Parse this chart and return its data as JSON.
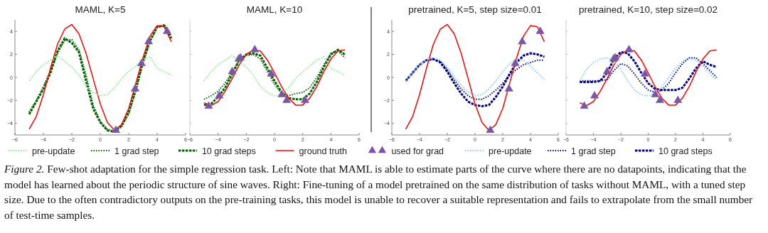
{
  "chart_data": [
    {
      "type": "line",
      "title": "MAML, K=5",
      "x": [
        -5,
        -4.5,
        -4,
        -3.5,
        -3,
        -2.5,
        -2,
        -1.5,
        -1,
        -0.5,
        0,
        0.5,
        1,
        1.5,
        2,
        2.5,
        3,
        3.5,
        4,
        4.5,
        5
      ],
      "xlim": [
        -6,
        6
      ],
      "ylim": [
        -5,
        5
      ],
      "xticks": [
        -6,
        -4,
        -2,
        0,
        2,
        4,
        6
      ],
      "yticks": [
        -4,
        -2,
        0,
        2,
        4
      ],
      "legend": "bottom",
      "series": [
        {
          "name": "pre-update",
          "color": "#90ee90",
          "line_style": "dotted",
          "values": [
            -0.3,
            0.5,
            1.1,
            1.5,
            1.9,
            1.4,
            0.9,
            0.2,
            -0.8,
            -1.3,
            -1.6,
            -1.5,
            -0.9,
            -0.1,
            0.5,
            1.0,
            1.5,
            1.8,
            0.8,
            0.5,
            0.2
          ]
        },
        {
          "name": "1 grad step",
          "color": "#006400",
          "line_style": "dotted",
          "values": [
            -3.0,
            -2.0,
            -0.8,
            0.6,
            2.1,
            3.2,
            3.3,
            2.4,
            0.2,
            -2.4,
            -3.8,
            -4.5,
            -4.7,
            -4.3,
            -3.2,
            -1.2,
            1.2,
            3.1,
            4.3,
            4.6,
            3.6
          ]
        },
        {
          "name": "10 grad steps",
          "color": "#006400",
          "line_style": "dashed",
          "values": [
            -3.2,
            -2.1,
            -1.0,
            0.4,
            2.3,
            3.4,
            3.0,
            2.2,
            -0.3,
            -2.7,
            -3.9,
            -4.6,
            -4.7,
            -4.2,
            -3.0,
            -1.0,
            1.4,
            3.2,
            4.4,
            4.5,
            3.4
          ]
        },
        {
          "name": "ground truth",
          "color": "#ff0000",
          "line_style": "solid",
          "values": [
            -4.5,
            -3.4,
            -1.5,
            0.8,
            2.9,
            4.2,
            4.6,
            3.8,
            2.1,
            -0.1,
            -2.3,
            -3.9,
            -4.6,
            -4.1,
            -2.7,
            -0.5,
            1.7,
            3.6,
            4.5,
            4.4,
            3.1
          ]
        },
        {
          "name": "used for grad",
          "type": "scatter",
          "marker": "triangle",
          "color": "#7e4fb5",
          "x": [
            1.1,
            2.45,
            2.9,
            3.4,
            4.7
          ],
          "values": [
            -4.6,
            -1.0,
            1.2,
            3.1,
            4.0
          ]
        }
      ],
      "annotations": [
        "Figure 2.",
        "Few-shot adaptation for the simple regression task. Left: Note that MAML is able to estimate parts of the curve where there are no datapoints, indicating that the model has learned about the periodic structure of sine waves. Right: Fine-tuning of a model pretrained on the same distribution of tasks without MAML, with a tuned step size. Due to the often contradictory outputs on the pre-training tasks, this model is unable to recover a suitable representation and fails to extrapolate from the small number of test-time samples."
      ]
    },
    {
      "type": "line",
      "title": "MAML, K=10",
      "x": [
        -5,
        -4.5,
        -4,
        -3.5,
        -3,
        -2.5,
        -2,
        -1.5,
        -1,
        -0.5,
        0,
        0.5,
        1,
        1.5,
        2,
        2.5,
        3,
        3.5,
        4,
        4.5,
        5
      ],
      "xlim": [
        -6,
        6
      ],
      "ylim": [
        -5,
        5
      ],
      "xticks": [
        -6,
        -4,
        -2,
        0,
        2,
        4,
        6
      ],
      "yticks": [
        -4,
        -2,
        0,
        2,
        4
      ],
      "tick_labels": "x",
      "legend": "bottom",
      "series": [
        {
          "color": "#90ee90",
          "line_style": "dotted",
          "values": [
            -0.3,
            0.5,
            1.1,
            1.5,
            1.9,
            1.4,
            0.9,
            0.2,
            -0.8,
            -1.3,
            -1.6,
            -1.5,
            -0.9,
            -0.1,
            0.5,
            1.0,
            1.5,
            1.8,
            0.8,
            0.5,
            0.2
          ]
        },
        {
          "color": "#006400",
          "line_style": "dotted",
          "values": [
            -1.9,
            -1.6,
            -1.2,
            -0.5,
            0.5,
            1.5,
            1.9,
            2.0,
            1.6,
            0.5,
            -0.6,
            -1.4,
            -1.6,
            -1.4,
            -1.3,
            -0.9,
            0.0,
            1.1,
            2.1,
            2.3,
            1.7
          ]
        },
        {
          "color": "#006400",
          "line_style": "dashed",
          "values": [
            -2.4,
            -2.3,
            -1.7,
            -0.9,
            0.3,
            1.5,
            2.0,
            2.1,
            1.9,
            0.8,
            -0.3,
            -1.3,
            -1.8,
            -1.9,
            -1.9,
            -1.4,
            -0.4,
            0.9,
            2.0,
            2.4,
            2.0
          ]
        },
        {
          "color": "#ff0000",
          "line_style": "solid",
          "values": [
            -2.2,
            -2.45,
            -2.1,
            -1.2,
            -0.1,
            1.1,
            2.0,
            2.4,
            2.3,
            1.5,
            0.4,
            -0.8,
            -1.8,
            -2.4,
            -2.4,
            -1.8,
            -0.8,
            0.5,
            1.6,
            2.3,
            2.4
          ]
        },
        {
          "type": "scatter",
          "marker": "triangle",
          "color": "#7e4fb5",
          "x": [
            -4.67,
            -3.92,
            -3.0,
            -2.53,
            -2.41,
            -1.4,
            -0.23,
            0.52,
            0.86,
            2.17
          ],
          "values": [
            -2.5,
            -1.6,
            0.5,
            1.6,
            1.7,
            2.4,
            0.3,
            -1.5,
            -2.0,
            -2.0
          ]
        }
      ]
    },
    {
      "type": "line",
      "title": "pretrained, K=5, step size=0.01",
      "x": [
        -5,
        -4.5,
        -4,
        -3.5,
        -3,
        -2.5,
        -2,
        -1.5,
        -1,
        -0.5,
        0,
        0.5,
        1,
        1.5,
        2,
        2.5,
        3,
        3.5,
        4,
        4.5,
        5
      ],
      "xlim": [
        -6,
        6
      ],
      "ylim": [
        -5,
        5
      ],
      "xticks": [
        -6,
        -4,
        -2,
        0,
        2,
        4,
        6
      ],
      "yticks": [
        -4,
        -2,
        0,
        2,
        4
      ],
      "legend": "bottom",
      "series": [
        {
          "name": "pre-update",
          "color": "#87cefa",
          "line_style": "dotted",
          "values": [
            -0.3,
            0.4,
            1.1,
            1.5,
            1.7,
            1.5,
            0.9,
            0.1,
            -0.7,
            -1.3,
            -1.6,
            -1.5,
            -1.0,
            -0.3,
            0.5,
            1.2,
            1.6,
            1.5,
            1.0,
            0.4,
            -0.2
          ]
        },
        {
          "name": "1 grad step",
          "color": "#00008b",
          "line_style": "dotted",
          "values": [
            -0.3,
            0.4,
            1.1,
            1.5,
            1.6,
            1.4,
            0.7,
            -0.2,
            -1.0,
            -1.6,
            -1.9,
            -1.9,
            -1.6,
            -1.1,
            -0.5,
            0.2,
            0.7,
            1.1,
            1.3,
            1.5,
            1.5
          ]
        },
        {
          "name": "10 grad steps",
          "color": "#00008b",
          "line_style": "dashed",
          "values": [
            -0.3,
            0.4,
            1.1,
            1.5,
            1.6,
            1.3,
            0.5,
            -0.5,
            -1.4,
            -2.1,
            -2.4,
            -2.5,
            -2.4,
            -1.7,
            -0.8,
            0.3,
            1.3,
            1.9,
            2.1,
            2.0,
            1.8
          ]
        },
        {
          "name": "ground truth",
          "color": "#ff0000",
          "line_style": "solid",
          "values": [
            -4.5,
            -3.4,
            -1.5,
            0.8,
            2.9,
            4.2,
            4.6,
            3.8,
            2.1,
            -0.1,
            -2.3,
            -3.9,
            -4.6,
            -4.1,
            -2.7,
            -0.5,
            1.7,
            3.6,
            4.5,
            4.4,
            3.1
          ]
        },
        {
          "name": "used for grad",
          "type": "scatter",
          "marker": "triangle",
          "color": "#7e4fb5",
          "x": [
            1.1,
            2.45,
            2.9,
            3.4,
            4.7
          ],
          "values": [
            -4.6,
            -1.0,
            1.2,
            3.1,
            4.0
          ]
        }
      ]
    },
    {
      "type": "line",
      "title": "pretrained, K=10, step size=0.02",
      "x": [
        -5,
        -4.5,
        -4,
        -3.5,
        -3,
        -2.5,
        -2,
        -1.5,
        -1,
        -0.5,
        0,
        0.5,
        1,
        1.5,
        2,
        2.5,
        3,
        3.5,
        4,
        4.5,
        5
      ],
      "xlim": [
        -6,
        6
      ],
      "ylim": [
        -5,
        5
      ],
      "xticks": [
        -6,
        -4,
        -2,
        0,
        2,
        4,
        6
      ],
      "yticks": [
        -4,
        -2,
        0,
        2,
        4
      ],
      "tick_labels": "x",
      "legend": "bottom",
      "series": [
        {
          "color": "#87cefa",
          "line_style": "dotted",
          "values": [
            -0.3,
            0.7,
            1.3,
            1.6,
            1.7,
            1.4,
            0.7,
            -0.3,
            -1.1,
            -1.5,
            -1.6,
            -1.4,
            -0.8,
            0.0,
            0.8,
            1.4,
            1.7,
            1.5,
            1.0,
            0.3,
            -0.2
          ]
        },
        {
          "color": "#00008b",
          "line_style": "dotted",
          "values": [
            -0.3,
            -0.3,
            -0.3,
            -0.3,
            -0.2,
            0.6,
            1.2,
            1.0,
            0.3,
            -0.5,
            -1.1,
            -1.3,
            -1.1,
            -0.5,
            0.4,
            1.2,
            1.7,
            1.7,
            1.2,
            0.6,
            0.0
          ]
        },
        {
          "color": "#00008b",
          "line_style": "dashed",
          "values": [
            -0.4,
            -0.4,
            -0.4,
            -0.3,
            0.4,
            1.6,
            2.2,
            2.1,
            1.4,
            0.4,
            -0.5,
            -1.0,
            -1.1,
            -1.1,
            -1.1,
            -0.9,
            -0.1,
            0.8,
            1.4,
            1.1,
            0.9
          ]
        },
        {
          "color": "#ff0000",
          "line_style": "solid",
          "values": [
            -2.2,
            -2.45,
            -2.1,
            -1.2,
            -0.1,
            1.1,
            2.0,
            2.4,
            2.3,
            1.5,
            0.4,
            -0.8,
            -1.8,
            -2.4,
            -2.4,
            -1.8,
            -0.8,
            0.5,
            1.6,
            2.3,
            2.4
          ]
        },
        {
          "type": "scatter",
          "marker": "triangle",
          "color": "#7e4fb5",
          "x": [
            -4.67,
            -3.92,
            -3.0,
            -2.53,
            -2.41,
            -1.4,
            -0.23,
            0.52,
            0.86,
            2.17
          ],
          "values": [
            -2.5,
            -1.6,
            0.5,
            1.6,
            1.7,
            2.4,
            0.3,
            -1.5,
            -2.0,
            -2.0
          ]
        }
      ]
    }
  ]
}
